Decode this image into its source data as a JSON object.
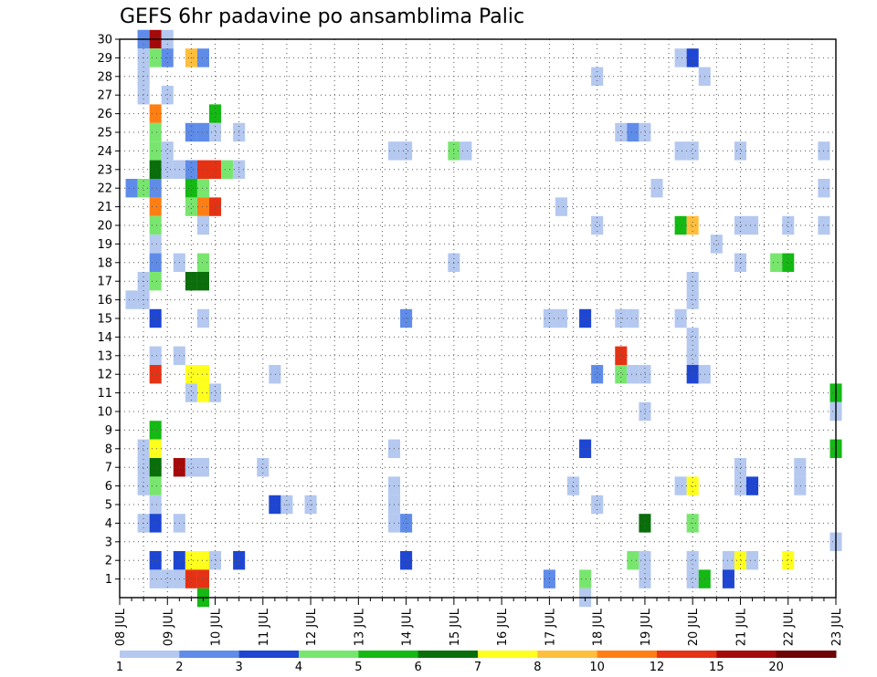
{
  "chart_data": {
    "type": "heatmap",
    "title": "GEFS 6hr padavine po ansamblima Palic",
    "xlabel": "",
    "ylabel": "",
    "x_ticks": [
      "08 JUL",
      "09 JUL",
      "10 JUL",
      "11 JUL",
      "12 JUL",
      "13 JUL",
      "14 JUL",
      "15 JUL",
      "16 JUL",
      "17 JUL",
      "18 JUL",
      "19 JUL",
      "20 JUL",
      "21 JUL",
      "22 JUL",
      "23 JUL"
    ],
    "y_ticks": [
      1,
      2,
      3,
      4,
      5,
      6,
      7,
      8,
      9,
      10,
      11,
      12,
      13,
      14,
      15,
      16,
      17,
      18,
      19,
      20,
      21,
      22,
      23,
      24,
      25,
      26,
      27,
      28,
      29,
      30
    ],
    "x_unit": "6-hour step from 08 JUL 00Z",
    "xlim": [
      0,
      60
    ],
    "ylim": [
      0,
      30
    ],
    "grid": true,
    "colorbar": {
      "colors": [
        "#b4c8f0",
        "#5f8ce8",
        "#1e46d2",
        "#78e66e",
        "#14b914",
        "#0a6e0a",
        "#ffff1e",
        "#ffbe3c",
        "#ff7f14",
        "#e63214",
        "#a50a0a",
        "#6e0505"
      ],
      "labels": [
        "1",
        "2",
        "3",
        "4",
        "5",
        "6",
        "7",
        "8",
        "10",
        "12",
        "15",
        "20"
      ]
    },
    "cells": [
      [
        30,
        2,
        1
      ],
      [
        30,
        2,
        2
      ],
      [
        30,
        3,
        11
      ],
      [
        30,
        4,
        1
      ],
      [
        29,
        2,
        1
      ],
      [
        29,
        3,
        4
      ],
      [
        29,
        4,
        2
      ],
      [
        29,
        6,
        8
      ],
      [
        29,
        7,
        2
      ],
      [
        29,
        47,
        1
      ],
      [
        29,
        48,
        3
      ],
      [
        28,
        2,
        1
      ],
      [
        28,
        2,
        1
      ],
      [
        28,
        40,
        1
      ],
      [
        28,
        49,
        1
      ],
      [
        27,
        2,
        1
      ],
      [
        27,
        4,
        1
      ],
      [
        26,
        3,
        9
      ],
      [
        26,
        8,
        5
      ],
      [
        25,
        3,
        4
      ],
      [
        25,
        6,
        2
      ],
      [
        25,
        7,
        2
      ],
      [
        25,
        8,
        1
      ],
      [
        25,
        10,
        1
      ],
      [
        25,
        42,
        1
      ],
      [
        25,
        43,
        2
      ],
      [
        25,
        44,
        1
      ],
      [
        24,
        3,
        4
      ],
      [
        24,
        4,
        1
      ],
      [
        24,
        23,
        1
      ],
      [
        24,
        24,
        1
      ],
      [
        24,
        28,
        4
      ],
      [
        24,
        29,
        1
      ],
      [
        24,
        47,
        1
      ],
      [
        24,
        48,
        1
      ],
      [
        24,
        52,
        1
      ],
      [
        24,
        59,
        1
      ],
      [
        23,
        3,
        6
      ],
      [
        23,
        4,
        1
      ],
      [
        23,
        5,
        1
      ],
      [
        23,
        6,
        2
      ],
      [
        23,
        7,
        10
      ],
      [
        23,
        8,
        10
      ],
      [
        23,
        9,
        4
      ],
      [
        23,
        10,
        1
      ],
      [
        22,
        1,
        2
      ],
      [
        22,
        2,
        4
      ],
      [
        22,
        3,
        2
      ],
      [
        22,
        6,
        5
      ],
      [
        22,
        7,
        4
      ],
      [
        22,
        45,
        1
      ],
      [
        22,
        59,
        1
      ],
      [
        21,
        3,
        9
      ],
      [
        21,
        6,
        4
      ],
      [
        21,
        7,
        9
      ],
      [
        21,
        8,
        10
      ],
      [
        21,
        37,
        1
      ],
      [
        20,
        3,
        4
      ],
      [
        20,
        7,
        1
      ],
      [
        20,
        40,
        1
      ],
      [
        20,
        47,
        5
      ],
      [
        20,
        48,
        8
      ],
      [
        20,
        52,
        1
      ],
      [
        20,
        53,
        1
      ],
      [
        20,
        56,
        1
      ],
      [
        20,
        59,
        1
      ],
      [
        19,
        3,
        1
      ],
      [
        19,
        50,
        1
      ],
      [
        18,
        3,
        2
      ],
      [
        18,
        5,
        1
      ],
      [
        18,
        7,
        4
      ],
      [
        18,
        28,
        1
      ],
      [
        18,
        52,
        1
      ],
      [
        18,
        55,
        4
      ],
      [
        18,
        56,
        5
      ],
      [
        17,
        2,
        1
      ],
      [
        17,
        3,
        4
      ],
      [
        17,
        6,
        6
      ],
      [
        17,
        7,
        6
      ],
      [
        17,
        48,
        1
      ],
      [
        16,
        1,
        1
      ],
      [
        16,
        2,
        1
      ],
      [
        16,
        48,
        1
      ],
      [
        15,
        3,
        3
      ],
      [
        15,
        7,
        1
      ],
      [
        15,
        24,
        2
      ],
      [
        15,
        36,
        1
      ],
      [
        15,
        37,
        1
      ],
      [
        15,
        39,
        3
      ],
      [
        15,
        42,
        1
      ],
      [
        15,
        43,
        1
      ],
      [
        15,
        47,
        1
      ],
      [
        14,
        48,
        1
      ],
      [
        13,
        3,
        1
      ],
      [
        13,
        5,
        1
      ],
      [
        13,
        42,
        10
      ],
      [
        13,
        48,
        1
      ],
      [
        12,
        3,
        10
      ],
      [
        12,
        6,
        7
      ],
      [
        12,
        7,
        7
      ],
      [
        12,
        13,
        1
      ],
      [
        12,
        40,
        2
      ],
      [
        12,
        42,
        4
      ],
      [
        12,
        43,
        1
      ],
      [
        12,
        44,
        1
      ],
      [
        12,
        48,
        3
      ],
      [
        12,
        49,
        1
      ],
      [
        11,
        6,
        1
      ],
      [
        11,
        7,
        7
      ],
      [
        11,
        8,
        1
      ],
      [
        11,
        60,
        5
      ],
      [
        10,
        44,
        1
      ],
      [
        10,
        60,
        1
      ],
      [
        9,
        3,
        5
      ],
      [
        8,
        2,
        1
      ],
      [
        8,
        3,
        7
      ],
      [
        8,
        23,
        1
      ],
      [
        8,
        39,
        3
      ],
      [
        8,
        60,
        5
      ],
      [
        7,
        2,
        1
      ],
      [
        7,
        3,
        6
      ],
      [
        7,
        5,
        11
      ],
      [
        7,
        6,
        1
      ],
      [
        7,
        7,
        1
      ],
      [
        7,
        12,
        1
      ],
      [
        7,
        52,
        1
      ],
      [
        7,
        57,
        1
      ],
      [
        6,
        2,
        1
      ],
      [
        6,
        3,
        4
      ],
      [
        6,
        23,
        1
      ],
      [
        6,
        38,
        1
      ],
      [
        6,
        47,
        1
      ],
      [
        6,
        48,
        7
      ],
      [
        6,
        52,
        1
      ],
      [
        6,
        53,
        3
      ],
      [
        6,
        57,
        1
      ],
      [
        5,
        3,
        1
      ],
      [
        5,
        13,
        3
      ],
      [
        5,
        14,
        1
      ],
      [
        5,
        16,
        1
      ],
      [
        5,
        23,
        1
      ],
      [
        5,
        40,
        1
      ],
      [
        4,
        2,
        1
      ],
      [
        4,
        3,
        3
      ],
      [
        4,
        5,
        1
      ],
      [
        4,
        23,
        1
      ],
      [
        4,
        24,
        2
      ],
      [
        4,
        44,
        6
      ],
      [
        4,
        48,
        4
      ],
      [
        3,
        60,
        1
      ],
      [
        2,
        3,
        3
      ],
      [
        2,
        5,
        3
      ],
      [
        2,
        6,
        7
      ],
      [
        2,
        7,
        7
      ],
      [
        2,
        8,
        1
      ],
      [
        2,
        10,
        3
      ],
      [
        2,
        24,
        3
      ],
      [
        2,
        43,
        4
      ],
      [
        2,
        44,
        1
      ],
      [
        2,
        48,
        1
      ],
      [
        2,
        51,
        1
      ],
      [
        2,
        52,
        7
      ],
      [
        2,
        53,
        1
      ],
      [
        2,
        56,
        7
      ],
      [
        1,
        3,
        1
      ],
      [
        1,
        4,
        1
      ],
      [
        1,
        5,
        1
      ],
      [
        1,
        6,
        10
      ],
      [
        1,
        7,
        10
      ],
      [
        1,
        36,
        2
      ],
      [
        1,
        39,
        4
      ],
      [
        1,
        44,
        1
      ],
      [
        1,
        48,
        1
      ],
      [
        1,
        49,
        5
      ],
      [
        1,
        51,
        3
      ],
      [
        0,
        7,
        5
      ],
      [
        0,
        39,
        1
      ]
    ]
  }
}
